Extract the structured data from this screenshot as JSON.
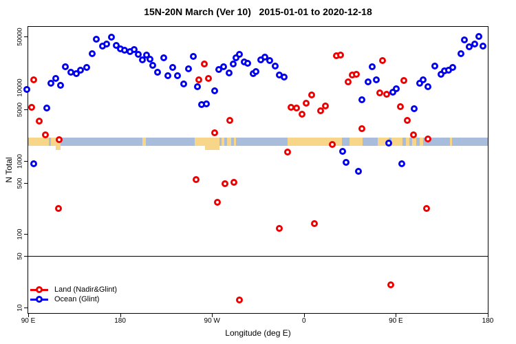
{
  "chart_data": {
    "type": "scatter",
    "title": "15N-20N March (Ver 10)   2015-01-01 to 2020-12-18",
    "xlabel": "Longitude (deg E)",
    "ylabel": "N Total",
    "x_axis": {
      "range_deg": [
        90,
        540
      ],
      "ticks_deg": [
        90,
        180,
        270,
        360,
        450,
        540
      ],
      "tick_labels": [
        "90 E",
        "180",
        "90 W",
        "0",
        "90 E",
        "180"
      ]
    },
    "y_axis": {
      "scale": "log",
      "range": [
        9,
        60000
      ],
      "ticks": [
        10,
        50,
        100,
        500,
        1000,
        5000,
        10000,
        50000
      ],
      "tick_labels": [
        "10",
        "50",
        "100",
        "500",
        "1000",
        "5000",
        "10000",
        "50000"
      ]
    },
    "reference_line_n": 50,
    "grid": false,
    "legend_position": "bottom-left",
    "map_strip": {
      "description": "ocean/land map band for the 15N-20N latitude strip",
      "ocean_color": "#a8bddb",
      "land_color": "#f7d68a",
      "n_top": 2070,
      "n_bottom": 1590,
      "land_segments_deg": [
        [
          91,
          110
        ],
        [
          112,
          121.5
        ],
        [
          202,
          205
        ],
        [
          253,
          277
        ],
        [
          279.5,
          282
        ],
        [
          285,
          289
        ],
        [
          291.5,
          293.5
        ],
        [
          344,
          397
        ],
        [
          404.5,
          417.5
        ],
        [
          432.5,
          443
        ],
        [
          446,
          456.5
        ],
        [
          459.5,
          463.5
        ],
        [
          466,
          470
        ],
        [
          473,
          477
        ],
        [
          503,
          505
        ]
      ],
      "below_strip_land_segments_deg": [
        [
          117,
          121.5
        ],
        [
          263,
          277
        ]
      ]
    },
    "series": [
      {
        "name": "Land (Nadir&Glint)",
        "color": "#ee0000",
        "marker": "open-circle",
        "points": [
          [
            95.5,
            12700
          ],
          [
            93.5,
            5340
          ],
          [
            100.5,
            3470
          ],
          [
            107,
            2250
          ],
          [
            120,
            1930
          ],
          [
            119.5,
            222
          ],
          [
            257,
            12700
          ],
          [
            262.5,
            20800
          ],
          [
            266.5,
            13200
          ],
          [
            272.5,
            2400
          ],
          [
            287.5,
            3540
          ],
          [
            254.5,
            552
          ],
          [
            282.5,
            484
          ],
          [
            291.5,
            506
          ],
          [
            275.5,
            270
          ],
          [
            297,
            12.5
          ],
          [
            336,
            119
          ],
          [
            370.5,
            138
          ],
          [
            347,
            5340
          ],
          [
            352.5,
            5220
          ],
          [
            358,
            4300
          ],
          [
            362,
            6080
          ],
          [
            367.5,
            7890
          ],
          [
            376,
            4800
          ],
          [
            381,
            5570
          ],
          [
            392,
            27000
          ],
          [
            396,
            27600
          ],
          [
            403.5,
            11900
          ],
          [
            407,
            14800
          ],
          [
            411.5,
            15100
          ],
          [
            416.5,
            2730
          ],
          [
            387.5,
            1660
          ],
          [
            344,
            1310
          ],
          [
            434.5,
            8410
          ],
          [
            441,
            8050
          ],
          [
            437,
            23200
          ],
          [
            457.5,
            12400
          ],
          [
            454.5,
            5460
          ],
          [
            461.5,
            3540
          ],
          [
            467.5,
            2250
          ],
          [
            481.5,
            1980
          ],
          [
            480,
            222
          ],
          [
            445,
            20
          ]
        ]
      },
      {
        "name": "Ocean (Glint)",
        "color": "#0000ee",
        "marker": "open-circle",
        "points": [
          [
            88.5,
            9380
          ],
          [
            95.5,
            900
          ],
          [
            108,
            5220
          ],
          [
            112,
            11400
          ],
          [
            117,
            13200
          ],
          [
            121.5,
            10700
          ],
          [
            126.5,
            19100
          ],
          [
            131.5,
            16100
          ],
          [
            137,
            15400
          ],
          [
            141.5,
            17100
          ],
          [
            147,
            18700
          ],
          [
            152.5,
            28800
          ],
          [
            156.5,
            45400
          ],
          [
            162.5,
            36600
          ],
          [
            166.5,
            39000
          ],
          [
            171.5,
            48400
          ],
          [
            176,
            37700
          ],
          [
            180.5,
            33500
          ],
          [
            184.5,
            32000
          ],
          [
            189.5,
            30600
          ],
          [
            193.5,
            32800
          ],
          [
            198,
            28200
          ],
          [
            202,
            23700
          ],
          [
            206,
            27700
          ],
          [
            209,
            24300
          ],
          [
            212,
            20100
          ],
          [
            216.5,
            16100
          ],
          [
            222.5,
            25200
          ],
          [
            226.5,
            14500
          ],
          [
            231.5,
            18700
          ],
          [
            236.5,
            14500
          ],
          [
            242,
            11100
          ],
          [
            247,
            17900
          ],
          [
            252,
            26400
          ],
          [
            256,
            10200
          ],
          [
            260,
            5800
          ],
          [
            264.5,
            5930
          ],
          [
            272.5,
            8900
          ],
          [
            276.5,
            17500
          ],
          [
            281.5,
            19100
          ],
          [
            287,
            15700
          ],
          [
            291,
            20800
          ],
          [
            293.5,
            25200
          ],
          [
            297,
            28200
          ],
          [
            301.5,
            22300
          ],
          [
            305,
            21300
          ],
          [
            310.5,
            15400
          ],
          [
            313,
            16500
          ],
          [
            317.5,
            23700
          ],
          [
            321.5,
            25800
          ],
          [
            326.5,
            23200
          ],
          [
            332,
            19600
          ],
          [
            336,
            14800
          ],
          [
            340.5,
            13900
          ],
          [
            398,
            1330
          ],
          [
            401,
            944
          ],
          [
            413.5,
            712
          ],
          [
            417,
            6760
          ],
          [
            422.5,
            11900
          ],
          [
            427,
            19100
          ],
          [
            431,
            12700
          ],
          [
            443,
            1730
          ],
          [
            447,
            8600
          ],
          [
            450.5,
            9590
          ],
          [
            456,
            900
          ],
          [
            468,
            5110
          ],
          [
            473,
            11400
          ],
          [
            477,
            12700
          ],
          [
            481.5,
            10200
          ],
          [
            488,
            19600
          ],
          [
            494.5,
            15100
          ],
          [
            497.5,
            16800
          ],
          [
            501.5,
            17100
          ],
          [
            505.5,
            18700
          ],
          [
            513.5,
            28800
          ],
          [
            517,
            44400
          ],
          [
            522,
            35600
          ],
          [
            527,
            39000
          ],
          [
            531,
            50000
          ],
          [
            535,
            36400
          ]
        ]
      }
    ]
  },
  "legend": {
    "items": [
      {
        "label": "Land (Nadir&Glint)",
        "color": "#ee0000"
      },
      {
        "label": "Ocean (Glint)",
        "color": "#0000ee"
      }
    ]
  }
}
